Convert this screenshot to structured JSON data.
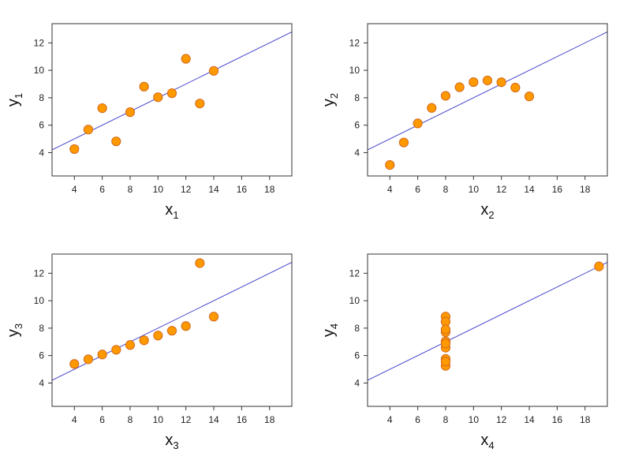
{
  "chart_data": [
    {
      "type": "scatter",
      "xlabel": "x",
      "xlabel_sub": "1",
      "ylabel": "y",
      "ylabel_sub": "1",
      "xticks": [
        4,
        6,
        8,
        10,
        12,
        14,
        16,
        18
      ],
      "yticks": [
        4,
        6,
        8,
        10,
        12
      ],
      "xlim": [
        2.4,
        19.6
      ],
      "ylim": [
        2.3,
        13.4
      ],
      "grid": false,
      "points": [
        [
          10,
          8.04
        ],
        [
          8,
          6.95
        ],
        [
          13,
          7.58
        ],
        [
          9,
          8.81
        ],
        [
          11,
          8.33
        ],
        [
          14,
          9.96
        ],
        [
          6,
          7.24
        ],
        [
          4,
          4.26
        ],
        [
          12,
          10.84
        ],
        [
          7,
          4.82
        ],
        [
          5,
          5.68
        ]
      ],
      "fit_line": {
        "intercept": 3.0,
        "slope": 0.5
      },
      "marker_color": "#ff9900",
      "marker_edge": "#d2691e",
      "line_color": "#4444cc"
    },
    {
      "type": "scatter",
      "xlabel": "x",
      "xlabel_sub": "2",
      "ylabel": "y",
      "ylabel_sub": "2",
      "xticks": [
        4,
        6,
        8,
        10,
        12,
        14,
        16,
        18
      ],
      "yticks": [
        4,
        6,
        8,
        10,
        12
      ],
      "xlim": [
        2.4,
        19.6
      ],
      "ylim": [
        2.3,
        13.4
      ],
      "grid": false,
      "points": [
        [
          10,
          9.14
        ],
        [
          8,
          8.14
        ],
        [
          13,
          8.74
        ],
        [
          9,
          8.77
        ],
        [
          11,
          9.26
        ],
        [
          14,
          8.1
        ],
        [
          6,
          6.13
        ],
        [
          4,
          3.1
        ],
        [
          12,
          9.13
        ],
        [
          7,
          7.26
        ],
        [
          5,
          4.74
        ]
      ],
      "fit_line": {
        "intercept": 3.0,
        "slope": 0.5
      },
      "marker_color": "#ff9900",
      "marker_edge": "#d2691e",
      "line_color": "#4444cc"
    },
    {
      "type": "scatter",
      "xlabel": "x",
      "xlabel_sub": "3",
      "ylabel": "y",
      "ylabel_sub": "3",
      "xticks": [
        4,
        6,
        8,
        10,
        12,
        14,
        16,
        18
      ],
      "yticks": [
        4,
        6,
        8,
        10,
        12
      ],
      "xlim": [
        2.4,
        19.6
      ],
      "ylim": [
        2.3,
        13.4
      ],
      "grid": false,
      "points": [
        [
          10,
          7.46
        ],
        [
          8,
          6.77
        ],
        [
          13,
          12.74
        ],
        [
          9,
          7.11
        ],
        [
          11,
          7.81
        ],
        [
          14,
          8.84
        ],
        [
          6,
          6.08
        ],
        [
          4,
          5.39
        ],
        [
          12,
          8.15
        ],
        [
          7,
          6.42
        ],
        [
          5,
          5.73
        ]
      ],
      "fit_line": {
        "intercept": 3.0,
        "slope": 0.5
      },
      "marker_color": "#ff9900",
      "marker_edge": "#d2691e",
      "line_color": "#4444cc"
    },
    {
      "type": "scatter",
      "xlabel": "x",
      "xlabel_sub": "4",
      "ylabel": "y",
      "ylabel_sub": "4",
      "xticks": [
        4,
        6,
        8,
        10,
        12,
        14,
        16,
        18
      ],
      "yticks": [
        4,
        6,
        8,
        10,
        12
      ],
      "xlim": [
        2.4,
        19.6
      ],
      "ylim": [
        2.3,
        13.4
      ],
      "grid": false,
      "points": [
        [
          8,
          6.58
        ],
        [
          8,
          5.76
        ],
        [
          8,
          7.71
        ],
        [
          8,
          8.84
        ],
        [
          8,
          8.47
        ],
        [
          8,
          7.04
        ],
        [
          8,
          5.25
        ],
        [
          19,
          12.5
        ],
        [
          8,
          5.56
        ],
        [
          8,
          7.91
        ],
        [
          8,
          6.89
        ]
      ],
      "fit_line": {
        "intercept": 3.0,
        "slope": 0.5
      },
      "marker_color": "#ff9900",
      "marker_edge": "#d2691e",
      "line_color": "#4444cc"
    }
  ]
}
